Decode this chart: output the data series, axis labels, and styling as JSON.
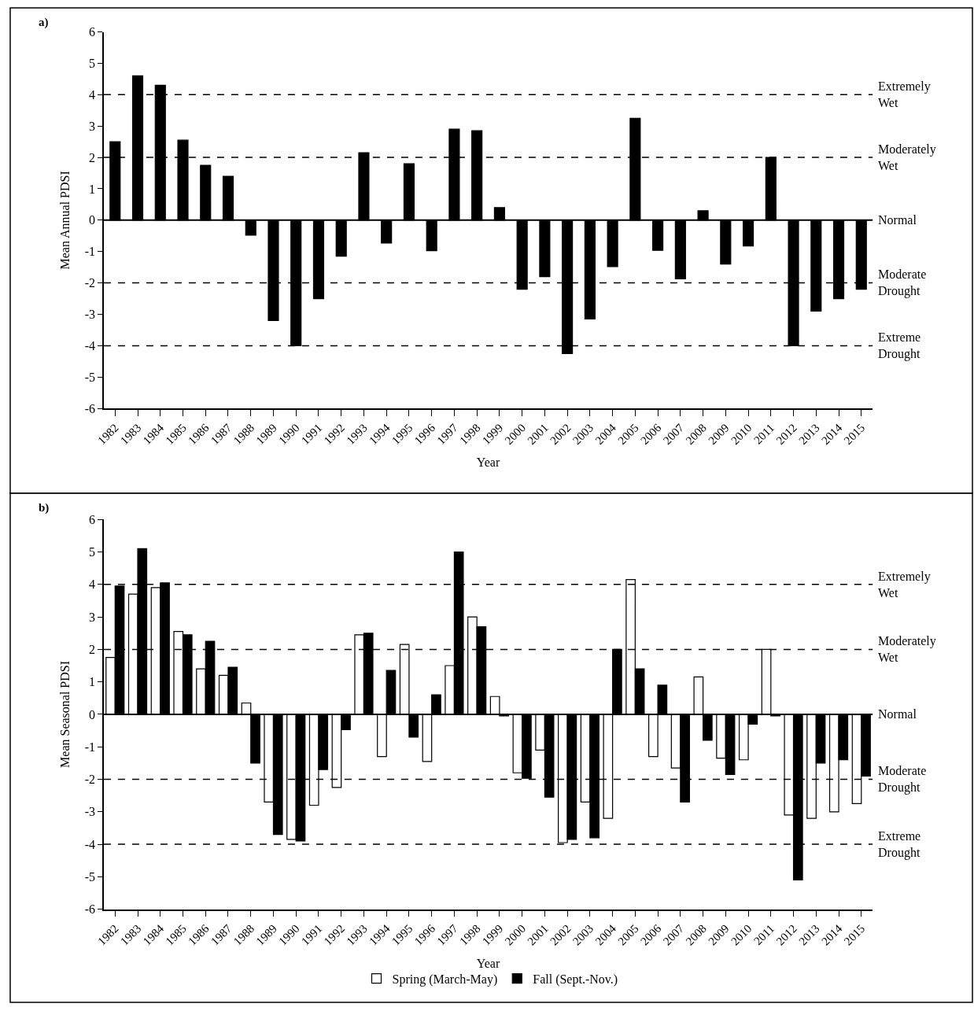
{
  "chart_data": [
    {
      "type": "bar",
      "xlabel": "Year",
      "ylabel": "Mean Annual PDSI",
      "annotations": [
        "a)"
      ],
      "categories": [
        "1982",
        "1983",
        "1984",
        "1985",
        "1986",
        "1987",
        "1988",
        "1989",
        "1990",
        "1991",
        "1992",
        "1993",
        "1994",
        "1995",
        "1996",
        "1997",
        "1998",
        "1999",
        "2000",
        "2001",
        "2002",
        "2003",
        "2004",
        "2005",
        "2006",
        "2007",
        "2008",
        "2009",
        "2010",
        "2011",
        "2012",
        "2013",
        "2014",
        "2015"
      ],
      "series": [
        {
          "color": "#000000",
          "values": [
            2.5,
            4.6,
            4.3,
            2.55,
            1.75,
            1.4,
            -0.48,
            -3.2,
            -4.0,
            -2.5,
            -1.15,
            2.15,
            -0.73,
            1.8,
            -0.97,
            2.9,
            2.85,
            0.4,
            -2.2,
            -1.8,
            -4.25,
            -3.15,
            -1.48,
            3.25,
            -0.96,
            -1.87,
            0.3,
            -1.4,
            -0.82,
            2.0,
            -4.0,
            -2.9,
            -2.5,
            -2.2
          ]
        }
      ],
      "ylim": [
        -6,
        6
      ],
      "yticks": [
        -6,
        -5,
        -4,
        -3,
        -2,
        -1,
        0,
        1,
        2,
        3,
        4,
        5,
        6
      ],
      "ref_lines": [
        {
          "axis": "y",
          "value": 4,
          "label": "Extremely\nWet",
          "line_style": "dashed"
        },
        {
          "axis": "y",
          "value": 2,
          "label": "Moderately\nWet",
          "line_style": "dashed"
        },
        {
          "axis": "y",
          "value": 0,
          "label": "Normal",
          "line_style": "solid"
        },
        {
          "axis": "y",
          "value": -2,
          "label": "Moderate\nDrought",
          "line_style": "dashed"
        },
        {
          "axis": "y",
          "value": -4,
          "label": "Extreme\nDrought",
          "line_style": "dashed"
        }
      ],
      "legend": false
    },
    {
      "type": "bar",
      "xlabel": "Year",
      "ylabel": "Mean Seasonal PDSI",
      "annotations": [
        "b)"
      ],
      "categories": [
        "1982",
        "1983",
        "1984",
        "1985",
        "1986",
        "1987",
        "1988",
        "1989",
        "1990",
        "1991",
        "1992",
        "1993",
        "1994",
        "1995",
        "1996",
        "1997",
        "1998",
        "1999",
        "2000",
        "2001",
        "2002",
        "2003",
        "2004",
        "2005",
        "2006",
        "2007",
        "2008",
        "2009",
        "2010",
        "2011",
        "2012",
        "2013",
        "2014",
        "2015"
      ],
      "series": [
        {
          "name": "Spring (March-May)",
          "color": "#ffffff",
          "values": [
            1.75,
            3.7,
            3.9,
            2.55,
            1.4,
            1.2,
            0.35,
            -2.7,
            -3.85,
            -2.8,
            -2.25,
            2.45,
            -1.3,
            2.15,
            -1.45,
            1.5,
            3.0,
            0.55,
            -1.8,
            -1.1,
            -3.95,
            -2.7,
            -3.2,
            4.15,
            -1.3,
            -1.65,
            1.15,
            -1.35,
            -1.4,
            2.0,
            -3.1,
            -3.2,
            -3.0,
            -2.75
          ]
        },
        {
          "name": "Fall (Sept.-Nov.)",
          "color": "#000000",
          "values": [
            3.95,
            5.1,
            4.05,
            2.45,
            2.25,
            1.45,
            -1.5,
            -3.7,
            -3.9,
            -1.7,
            -0.47,
            2.5,
            1.35,
            -0.7,
            0.6,
            5.0,
            2.7,
            -0.05,
            -1.97,
            -2.55,
            -3.85,
            -3.8,
            2.0,
            1.4,
            0.9,
            -2.7,
            -0.8,
            -1.85,
            -0.3,
            -0.05,
            -5.1,
            -1.5,
            -1.4,
            -1.9
          ]
        }
      ],
      "ylim": [
        -6,
        6
      ],
      "yticks": [
        -6,
        -5,
        -4,
        -3,
        -2,
        -1,
        0,
        1,
        2,
        3,
        4,
        5,
        6
      ],
      "ref_lines": [
        {
          "axis": "y",
          "value": 4,
          "label": "Extremely\nWet",
          "line_style": "dashed"
        },
        {
          "axis": "y",
          "value": 2,
          "label": "Moderately\nWet",
          "line_style": "dashed"
        },
        {
          "axis": "y",
          "value": 0,
          "label": "Normal",
          "line_style": "solid"
        },
        {
          "axis": "y",
          "value": -2,
          "label": "Moderate\nDrought",
          "line_style": "dashed"
        },
        {
          "axis": "y",
          "value": -4,
          "label": "Extreme\nDrought",
          "line_style": "dashed"
        }
      ],
      "legend": "bottom"
    }
  ]
}
